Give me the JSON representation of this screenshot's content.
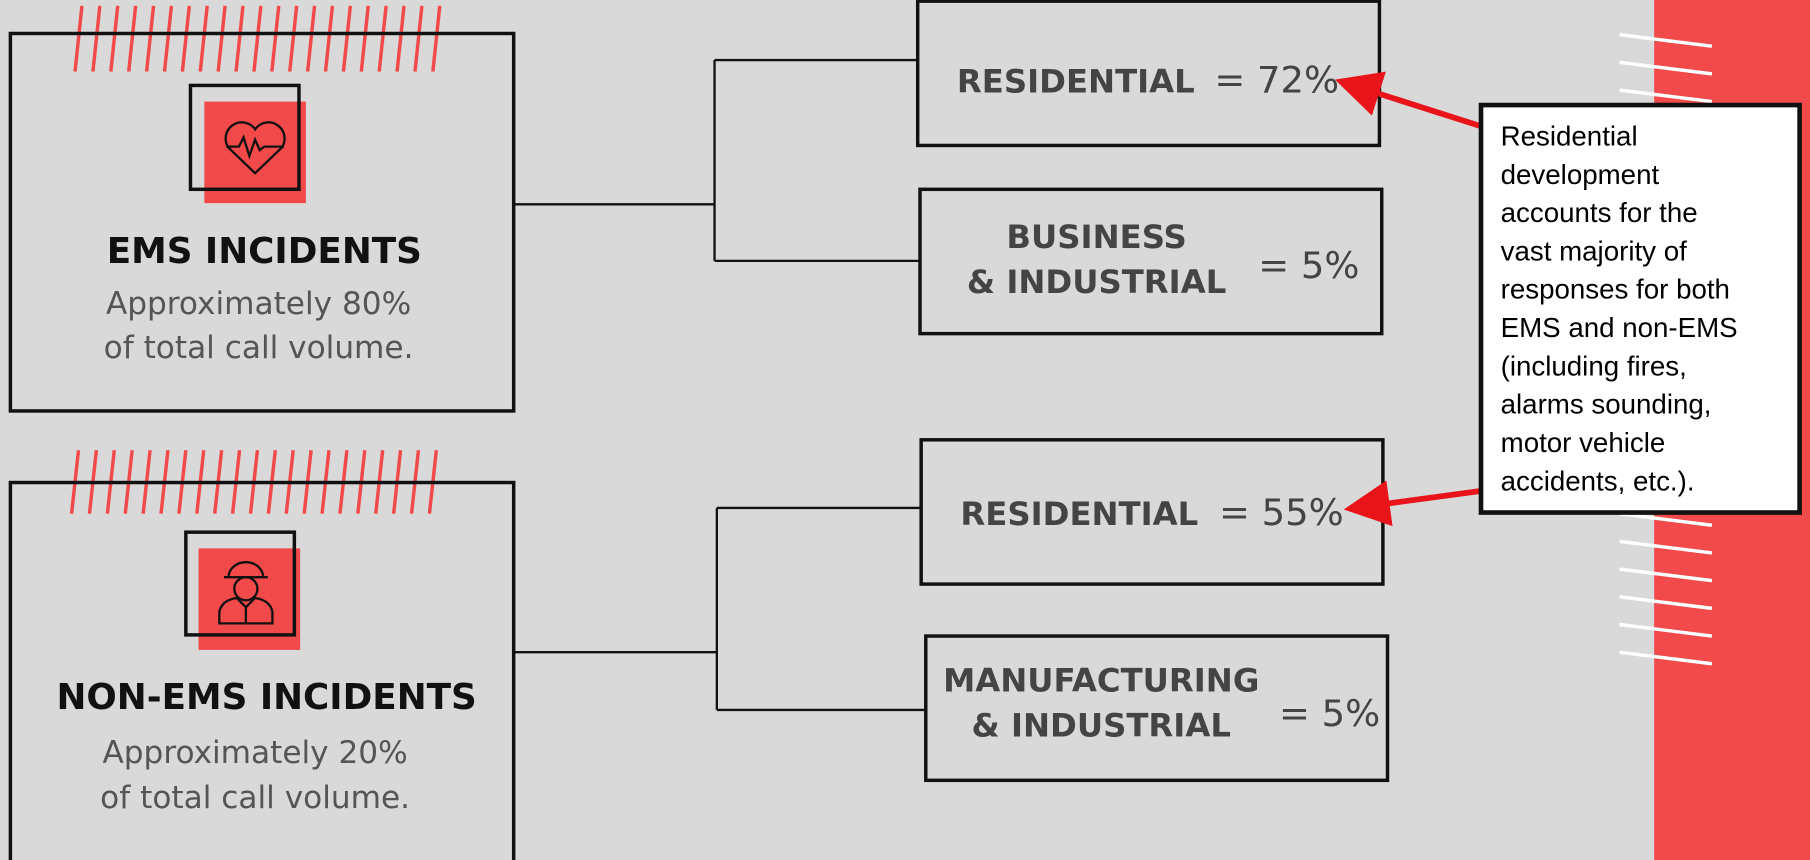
{
  "groups": [
    {
      "title": "EMS INCIDENTS",
      "description": [
        "Approximately 80%",
        "of total call volume."
      ],
      "branches": [
        {
          "label": [
            "RESIDENTIAL"
          ],
          "value": "= 72%"
        },
        {
          "label": [
            "BUSINESS",
            "& INDUSTRIAL"
          ],
          "value": "= 5%"
        }
      ]
    },
    {
      "title": "NON-EMS INCIDENTS",
      "description": [
        "Approximately 20%",
        "of total call volume."
      ],
      "branches": [
        {
          "label": [
            "RESIDENTIAL"
          ],
          "value": "= 55%"
        },
        {
          "label": [
            "MANUFACTURING",
            "& INDUSTRIAL"
          ],
          "value": "= 5%"
        }
      ]
    }
  ],
  "callout": {
    "lines": [
      "Residential",
      "development",
      "accounts for the",
      "vast majority of",
      "responses for both",
      "EMS and non-EMS",
      "(including fires,",
      "alarms sounding,",
      "motor vehicle",
      "accidents, etc.)."
    ]
  }
}
